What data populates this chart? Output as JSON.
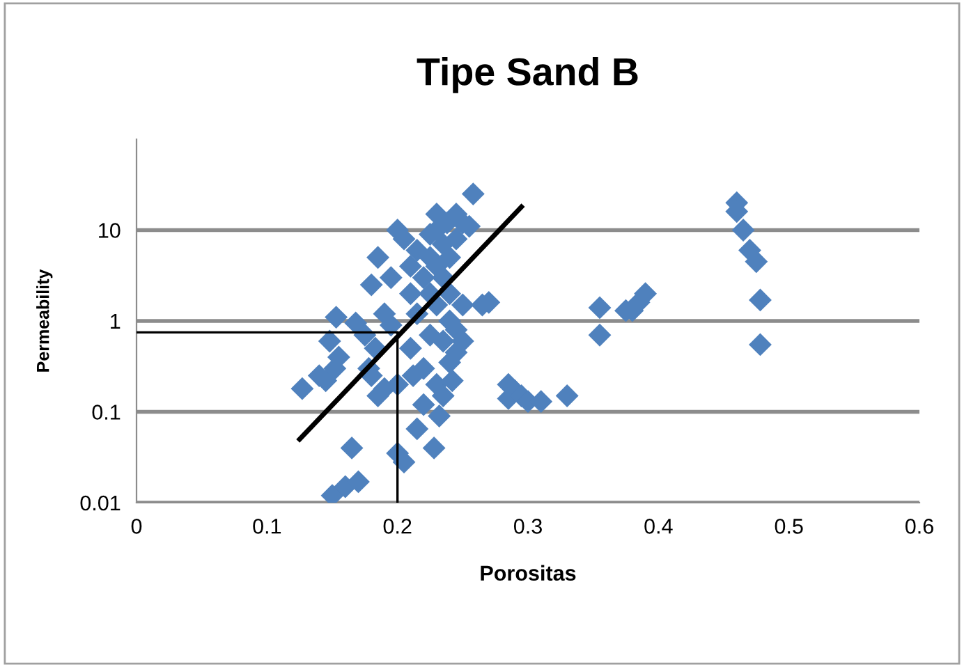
{
  "chart_data": {
    "type": "scatter",
    "title": "Tipe Sand B",
    "xlabel": "Porositas",
    "ylabel": "Permeability",
    "log": "y",
    "xlim": [
      0,
      0.6
    ],
    "xticks": [
      0,
      0.1,
      0.2,
      0.3,
      0.4,
      0.5,
      0.6
    ],
    "ylim": [
      0.01,
      100
    ],
    "yticks": [
      0.01,
      0.1,
      1,
      10
    ],
    "grid": "y",
    "marker": "diamond",
    "series": [
      {
        "color": "#4f81bd",
        "x": [
          0.127,
          0.14,
          0.145,
          0.148,
          0.152,
          0.155,
          0.153,
          0.15,
          0.16,
          0.17,
          0.165,
          0.168,
          0.175,
          0.178,
          0.18,
          0.183,
          0.18,
          0.185,
          0.185,
          0.19,
          0.19,
          0.195,
          0.195,
          0.2,
          0.2,
          0.2,
          0.205,
          0.205,
          0.21,
          0.21,
          0.21,
          0.212,
          0.215,
          0.215,
          0.215,
          0.22,
          0.22,
          0.22,
          0.225,
          0.225,
          0.225,
          0.225,
          0.228,
          0.23,
          0.23,
          0.23,
          0.23,
          0.23,
          0.232,
          0.235,
          0.235,
          0.235,
          0.235,
          0.238,
          0.24,
          0.24,
          0.24,
          0.24,
          0.242,
          0.245,
          0.245,
          0.245,
          0.245,
          0.25,
          0.25,
          0.25,
          0.255,
          0.258,
          0.265,
          0.27,
          0.285,
          0.285,
          0.29,
          0.295,
          0.3,
          0.31,
          0.33,
          0.355,
          0.355,
          0.375,
          0.38,
          0.385,
          0.39,
          0.46,
          0.46,
          0.465,
          0.47,
          0.475,
          0.478,
          0.478
        ],
        "values": [
          0.18,
          0.25,
          0.22,
          0.6,
          0.3,
          0.4,
          1.1,
          0.012,
          0.015,
          0.017,
          0.04,
          0.95,
          0.7,
          0.3,
          0.25,
          0.5,
          2.5,
          5,
          0.15,
          0.18,
          1.2,
          0.9,
          3,
          10,
          0.2,
          0.035,
          0.028,
          8,
          0.5,
          2,
          4,
          0.25,
          6,
          1.2,
          0.065,
          3,
          0.3,
          0.12,
          9,
          5,
          2,
          0.7,
          0.04,
          15,
          10,
          4,
          1.5,
          0.2,
          0.09,
          7,
          3,
          0.6,
          0.15,
          12,
          5,
          2,
          1,
          0.35,
          0.22,
          15,
          8,
          0.8,
          0.45,
          12,
          1.5,
          0.6,
          11,
          25,
          1.5,
          1.6,
          0.2,
          0.14,
          0.17,
          0.15,
          0.13,
          0.13,
          0.15,
          1.4,
          0.7,
          1.3,
          1.3,
          1.6,
          2,
          20,
          16,
          10,
          6,
          4.5,
          1.7,
          0.55
        ]
      },
      {
        "type": "line",
        "color": "#000000",
        "x": [
          0.125,
          0.295
        ],
        "values": [
          0.05,
          18
        ],
        "marker": "none"
      },
      {
        "type": "line",
        "color": "#000000",
        "x": [
          0,
          0.2
        ],
        "values": [
          0.75,
          0.75
        ],
        "marker": "none"
      },
      {
        "type": "line",
        "color": "#000000",
        "x": [
          0.2,
          0.2
        ],
        "values": [
          0.01,
          0.75
        ],
        "marker": "none"
      }
    ]
  }
}
